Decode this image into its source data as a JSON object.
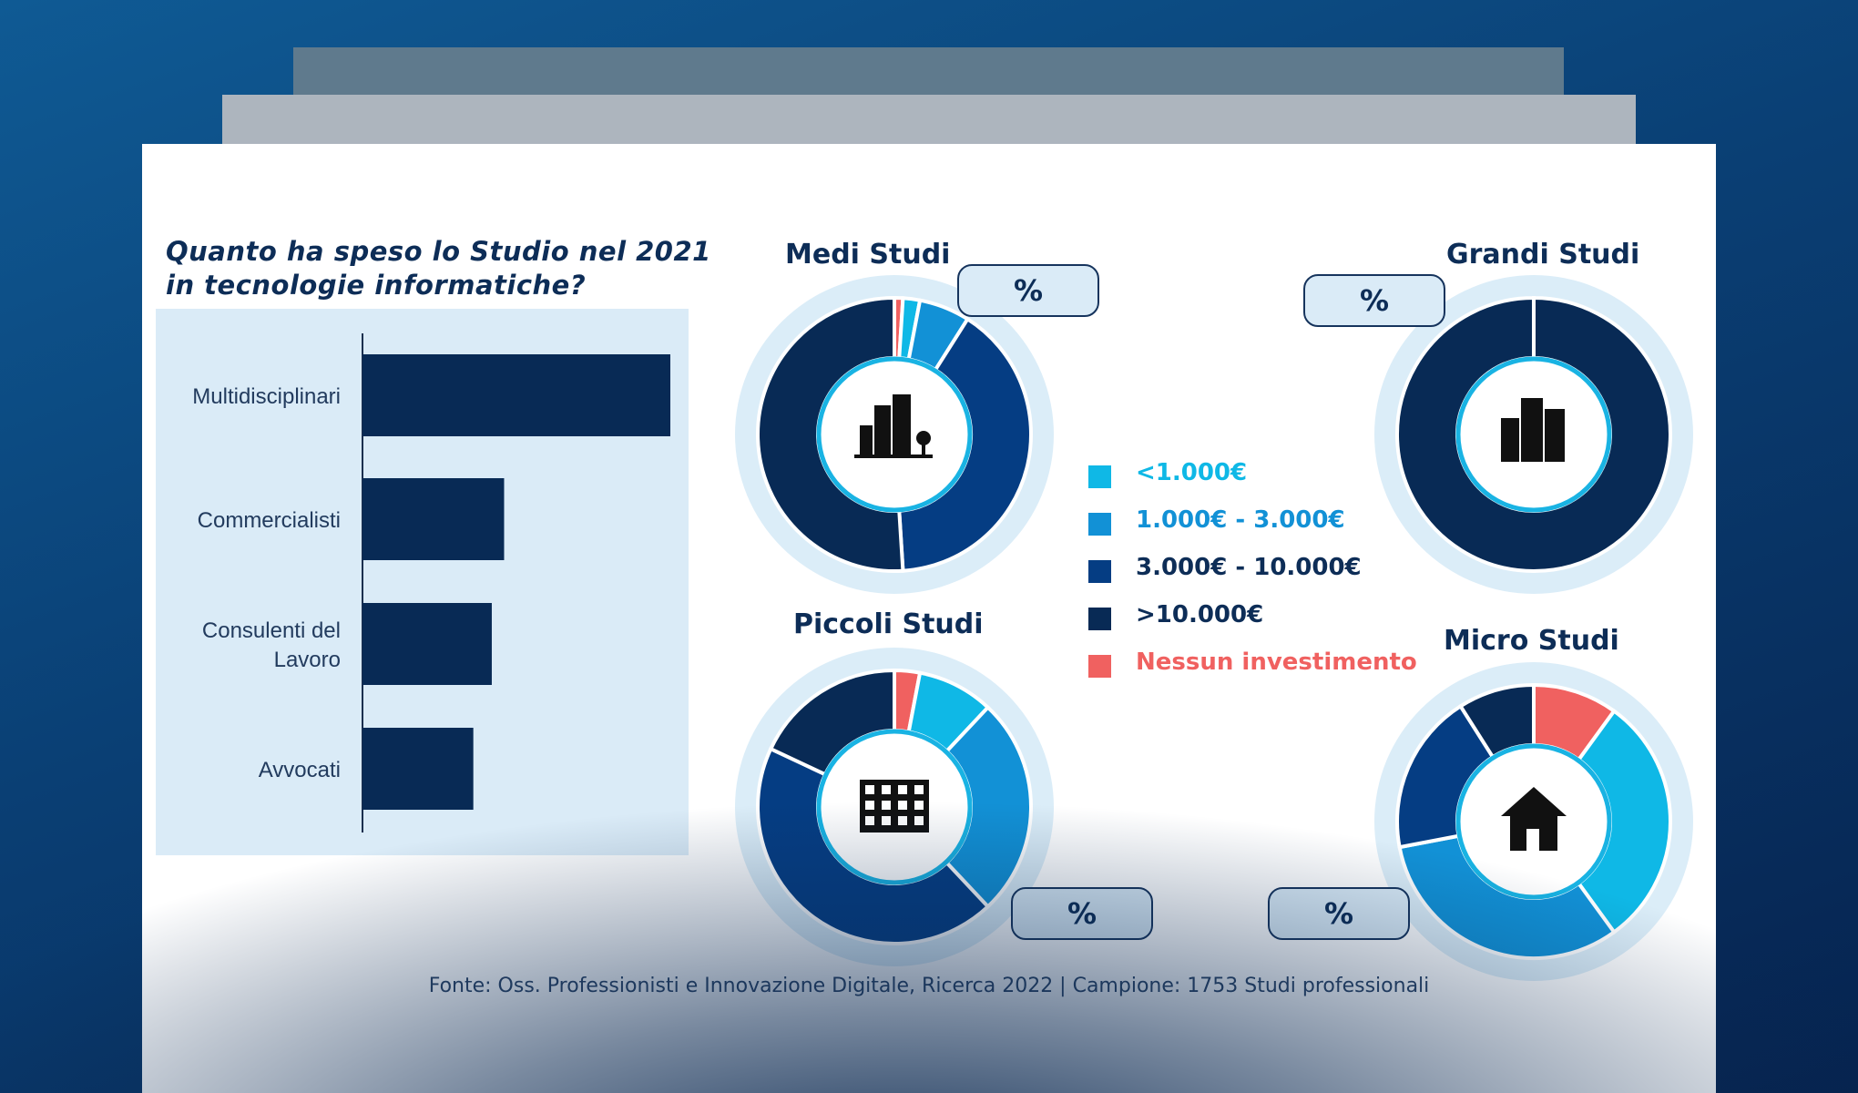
{
  "question": "Quanto ha speso lo Studio nel 2021 in tecnologie informatiche?",
  "colors": {
    "navy": "#082a55",
    "dark_blue": "#053d83",
    "mid_blue": "#1291d6",
    "light_blue": "#0fb8e6",
    "coral": "#f06160",
    "ring": "#dbedf8"
  },
  "legend": [
    {
      "label": "<1.000€",
      "color": "#0fb8e6"
    },
    {
      "label": "1.000€ - 3.000€",
      "color": "#1291d6"
    },
    {
      "label": "3.000€ - 10.000€",
      "color": "#053d83"
    },
    {
      "label": ">10.000€",
      "color": "#082a55"
    },
    {
      "label": "Nessun investimento",
      "color": "#f06160"
    }
  ],
  "pill_label": "%",
  "source": "Fonte: Oss. Professionisti  e Innovazione Digitale, Ricerca 2022 | Campione: 1753 Studi professionali",
  "chart_data": [
    {
      "type": "bar",
      "orientation": "horizontal",
      "categories": [
        "Multidisciplinari",
        "Commercialisti",
        "Consulenti del Lavoro",
        "Avvocati"
      ],
      "values": [
        100,
        46,
        42,
        36
      ],
      "value_labels_shown": false
    },
    {
      "type": "pie",
      "title": "Medi Studi",
      "icon": "office-buildings-icon",
      "labels": [
        "Nessun investimento",
        "<1.000€",
        "1.000€ - 3.000€",
        "3.000€ - 10.000€",
        ">10.000€"
      ],
      "values": [
        1,
        2,
        6,
        40,
        51
      ]
    },
    {
      "type": "pie",
      "title": "Grandi Studi",
      "icon": "skyscrapers-icon",
      "labels": [
        ">10.000€"
      ],
      "values": [
        100
      ]
    },
    {
      "type": "pie",
      "title": "Piccoli Studi",
      "icon": "apartment-building-icon",
      "labels": [
        "Nessun investimento",
        "<1.000€",
        "1.000€ - 3.000€",
        "3.000€ - 10.000€",
        ">10.000€"
      ],
      "values": [
        3,
        9,
        26,
        44,
        18
      ]
    },
    {
      "type": "pie",
      "title": "Micro Studi",
      "icon": "house-icon",
      "labels": [
        "Nessun investimento",
        "<1.000€",
        "1.000€ - 3.000€",
        "3.000€ - 10.000€",
        ">10.000€"
      ],
      "values": [
        10,
        30,
        32,
        19,
        9
      ]
    }
  ]
}
